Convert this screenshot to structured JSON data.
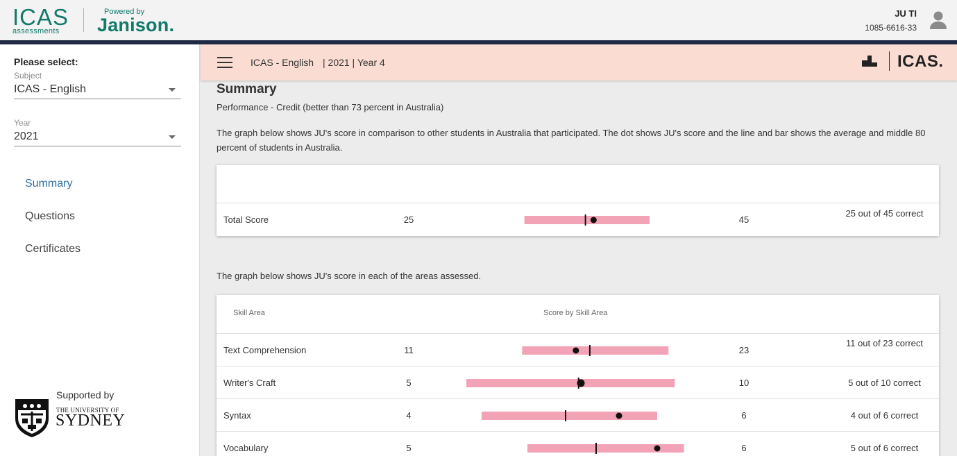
{
  "header": {
    "logo_main": "ICAS",
    "logo_sub": "assessments",
    "powered_by": "Powered by",
    "partner": "Janison",
    "partner_dot": ".",
    "user_name": "JU TI",
    "user_id": "1085-6616-33",
    "avatar_icon": "user-avatar-icon",
    "brand_color": "#137a6b",
    "rule_color": "#1f2a44"
  },
  "sidebar": {
    "prompt": "Please select:",
    "subject_label": "Subject",
    "subject_value": "ICAS - English",
    "year_label": "Year",
    "year_value": "2021",
    "nav": [
      {
        "label": "Summary",
        "active": true
      },
      {
        "label": "Questions",
        "active": false
      },
      {
        "label": "Certificates",
        "active": false
      }
    ],
    "supported_by": "Supported by",
    "uni_small": "THE UNIVERSITY OF",
    "uni_big": "SYDNEY"
  },
  "subheader": {
    "subject": "ICAS - English",
    "year_info": "| 2021 | Year 4",
    "brand": "ICAS.",
    "menu_icon": "hamburger-menu-icon",
    "podium_icon": "podium-icon",
    "background": "#fadcd3"
  },
  "summary": {
    "title": "Summary",
    "performance": "Performance - Credit (better than 73 percent in Australia)",
    "intro": "The graph below shows JU's score in comparison to other students in Australia that participated. The dot shows JU's score and the line and bar shows the average and middle 80 percent of students in Australia.",
    "areas_intro": "The graph below shows JU's score in each of the areas assessed.",
    "bar_color": "#f2a3b5",
    "total": {
      "name": "Total Score",
      "score": 25,
      "max": 45,
      "result": "25 out of 45 correct",
      "band_low": 11.4,
      "band_high": 36,
      "average": 23.4
    }
  },
  "skills": {
    "col_area": "Skill Area",
    "col_score": "Score by Skill Area",
    "rows": [
      {
        "name": "Text Comprehension",
        "score": 11,
        "max": 23,
        "result": "11 out of 23 correct",
        "band_low": 5.6,
        "band_high": 20.3,
        "average": 12.4
      },
      {
        "name": "Writer's Craft",
        "score": 5,
        "max": 10,
        "result": "5 out of 10 correct",
        "band_low": 0,
        "band_high": 9.1,
        "average": 4.9
      },
      {
        "name": "Syntax",
        "score": 4,
        "max": 6,
        "result": "4 out of 6 correct",
        "band_low": 0.4,
        "band_high": 5.0,
        "average": 2.6
      },
      {
        "name": "Vocabulary",
        "score": 5,
        "max": 6,
        "result": "5 out of 6 correct",
        "band_low": 1.6,
        "band_high": 5.7,
        "average": 3.4
      }
    ]
  }
}
